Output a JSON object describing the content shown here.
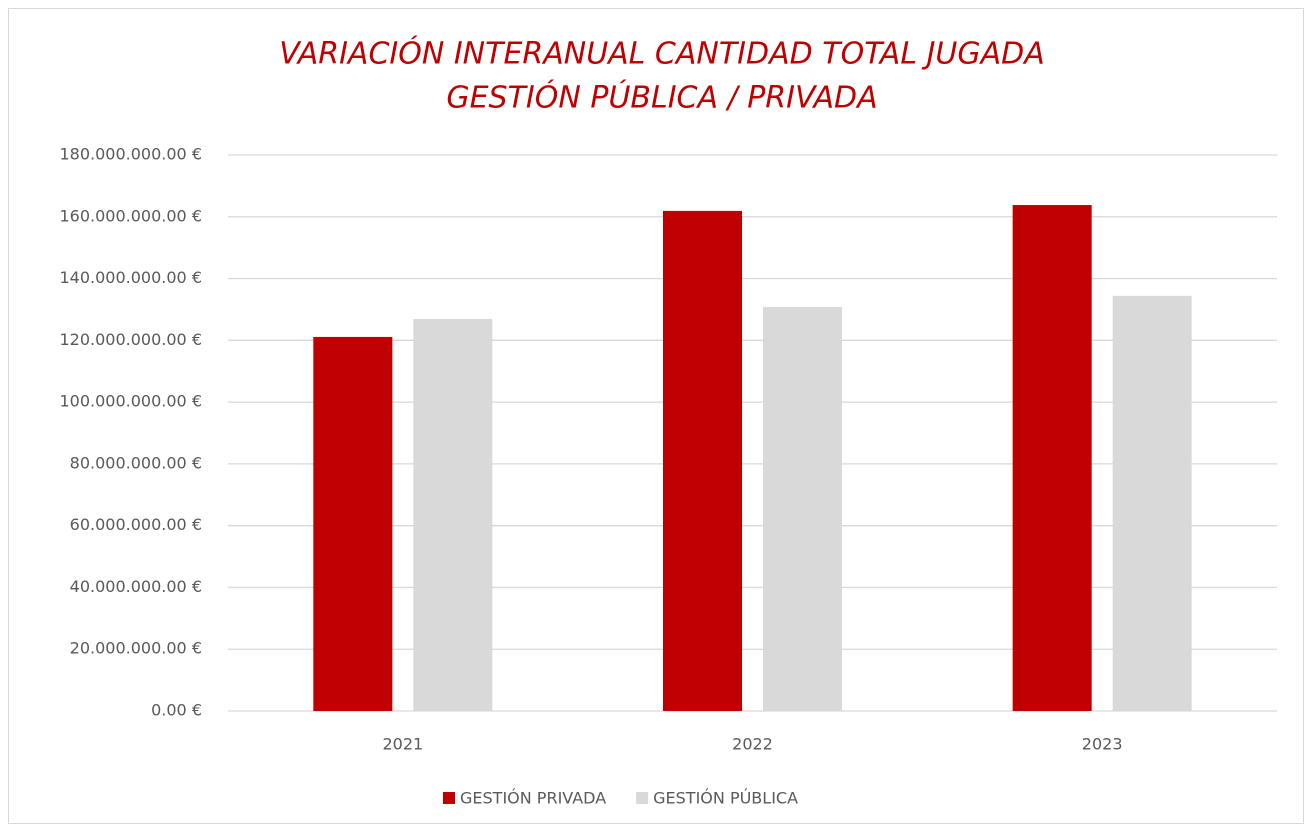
{
  "chart_data": {
    "type": "bar",
    "title": [
      "VARIACIÓN INTERANUAL CANTIDAD TOTAL JUGADA",
      "GESTIÓN PÚBLICA / PRIVADA"
    ],
    "categories": [
      "2021",
      "2022",
      "2023"
    ],
    "series": [
      {
        "name": "GESTIÓN PRIVADA",
        "color": "#c00000",
        "values": [
          121100000,
          161900000,
          163800000
        ]
      },
      {
        "name": "GESTIÓN PÚBLICA",
        "color": "#d9d9d9",
        "values": [
          126900000,
          130800000,
          134400000
        ]
      }
    ],
    "ylim": [
      0,
      180000000
    ],
    "yticks": [
      {
        "value": 0,
        "label": "0.00 €"
      },
      {
        "value": 20000000,
        "label": "20.000.000.00 €"
      },
      {
        "value": 40000000,
        "label": "40.000.000.00 €"
      },
      {
        "value": 60000000,
        "label": "60.000.000.00 €"
      },
      {
        "value": 80000000,
        "label": "80.000.000.00 €"
      },
      {
        "value": 100000000,
        "label": "100.000.000.00 €"
      },
      {
        "value": 120000000,
        "label": "120.000.000.00 €"
      },
      {
        "value": 140000000,
        "label": "140.000.000.00 €"
      },
      {
        "value": 160000000,
        "label": "160.000.000.00 €"
      },
      {
        "value": 180000000,
        "label": "180.000.000.00 €"
      }
    ],
    "grid": true,
    "legend": "bottom"
  }
}
